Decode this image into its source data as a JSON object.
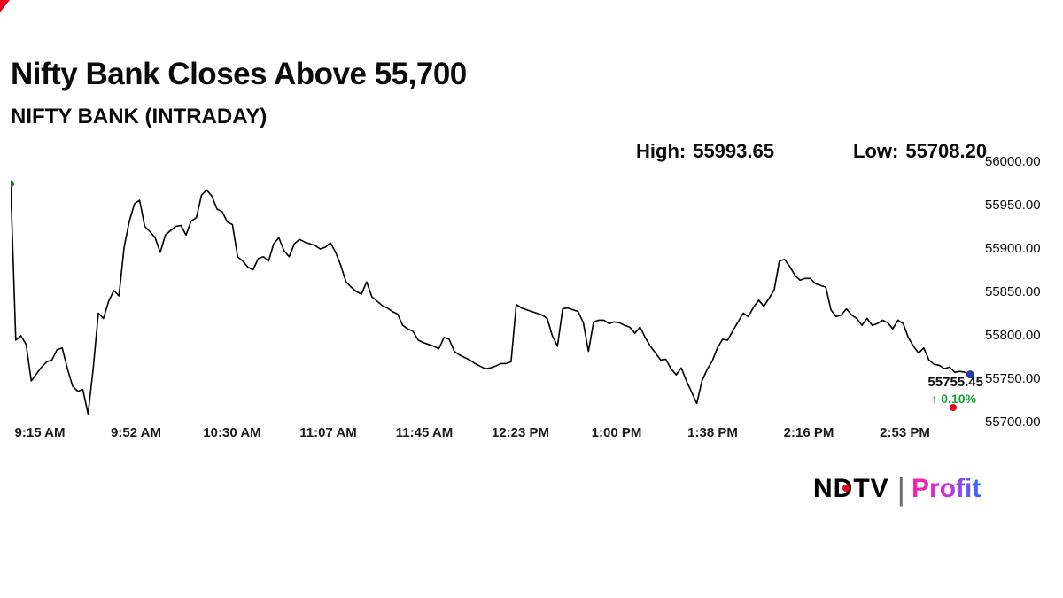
{
  "header": {
    "title": "Nifty Bank Closes Above 55,700",
    "subtitle": "NIFTY BANK (INTRADAY)"
  },
  "stats": {
    "high_label": "High:",
    "high_value": "55993.65",
    "low_label": "Low:",
    "low_value": "55708.20"
  },
  "last_quote": {
    "price": "55755.45",
    "arrow": "↑",
    "change_percent": "0.10%",
    "direction": "up"
  },
  "branding": {
    "ndtv": "NDTV",
    "divider": "|",
    "profit": "Profit"
  },
  "colors": {
    "line": "#000000",
    "open_marker": "#1e7a2e",
    "last_marker": "#2b3a9e",
    "change_up": "#12a038",
    "accent_red": "#e8001e"
  },
  "chart_data": {
    "type": "line",
    "title": "NIFTY BANK (INTRADAY)",
    "xlabel": "",
    "ylabel": "",
    "grid": false,
    "legend": "none",
    "x_ticks": [
      "9:15 AM",
      "9:52 AM",
      "10:30 AM",
      "11:07 AM",
      "11:45 AM",
      "12:23 PM",
      "1:00 PM",
      "1:38 PM",
      "2:16 PM",
      "2:53 PM"
    ],
    "y_ticks": [
      "56000.00",
      "55950.00",
      "55900.00",
      "55850.00",
      "55800.00",
      "55750.00",
      "55700.00"
    ],
    "ylim": [
      55700,
      56000
    ],
    "x_minutes_range": [
      0,
      375
    ],
    "high": 55993.65,
    "low": 55708.2,
    "last": 55755.45,
    "change_percent": 0.1,
    "line_color": "#000000",
    "series": [
      {
        "name": "NIFTY BANK (INTRADAY)",
        "start_minute": 0,
        "step_minutes": 2,
        "values": [
          55975,
          55795,
          55800,
          55790,
          55748,
          55756,
          55764,
          55770,
          55772,
          55784,
          55786,
          55762,
          55742,
          55736,
          55738,
          55710,
          55762,
          55826,
          55820,
          55840,
          55852,
          55846,
          55902,
          55932,
          55952,
          55956,
          55926,
          55920,
          55913,
          55896,
          55916,
          55921,
          55926,
          55927,
          55916,
          55932,
          55936,
          55962,
          55968,
          55961,
          55946,
          55943,
          55931,
          55928,
          55891,
          55886,
          55879,
          55876,
          55889,
          55891,
          55886,
          55906,
          55913,
          55898,
          55891,
          55906,
          55911,
          55908,
          55906,
          55904,
          55900,
          55902,
          55907,
          55896,
          55881,
          55862,
          55856,
          55851,
          55848,
          55862,
          55845,
          55840,
          55835,
          55832,
          55828,
          55825,
          55812,
          55808,
          55805,
          55795,
          55792,
          55790,
          55788,
          55785,
          55798,
          55796,
          55782,
          55778,
          55775,
          55772,
          55768,
          55765,
          55762,
          55763,
          55765,
          55768,
          55768,
          55770,
          55836,
          55832,
          55830,
          55828,
          55826,
          55824,
          55820,
          55800,
          55788,
          55831,
          55832,
          55830,
          55828,
          55815,
          55782,
          55816,
          55818,
          55818,
          55814,
          55816,
          55815,
          55812,
          55810,
          55803,
          55810,
          55798,
          55788,
          55780,
          55772,
          55773,
          55762,
          55755,
          55763,
          55748,
          55735,
          55722,
          55748,
          55761,
          55771,
          55786,
          55796,
          55795,
          55806,
          55816,
          55826,
          55822,
          55833,
          55841,
          55834,
          55843,
          55853,
          55886,
          55888,
          55880,
          55870,
          55864,
          55866,
          55866,
          55860,
          55858,
          55856,
          55830,
          55822,
          55824,
          55831,
          55824,
          55820,
          55812,
          55820,
          55812,
          55814,
          55818,
          55815,
          55808,
          55818,
          55814,
          55798,
          55788,
          55780,
          55786,
          55772,
          55767,
          55766,
          55762,
          55764,
          55758,
          55759,
          55758,
          55755.45
        ]
      }
    ]
  }
}
